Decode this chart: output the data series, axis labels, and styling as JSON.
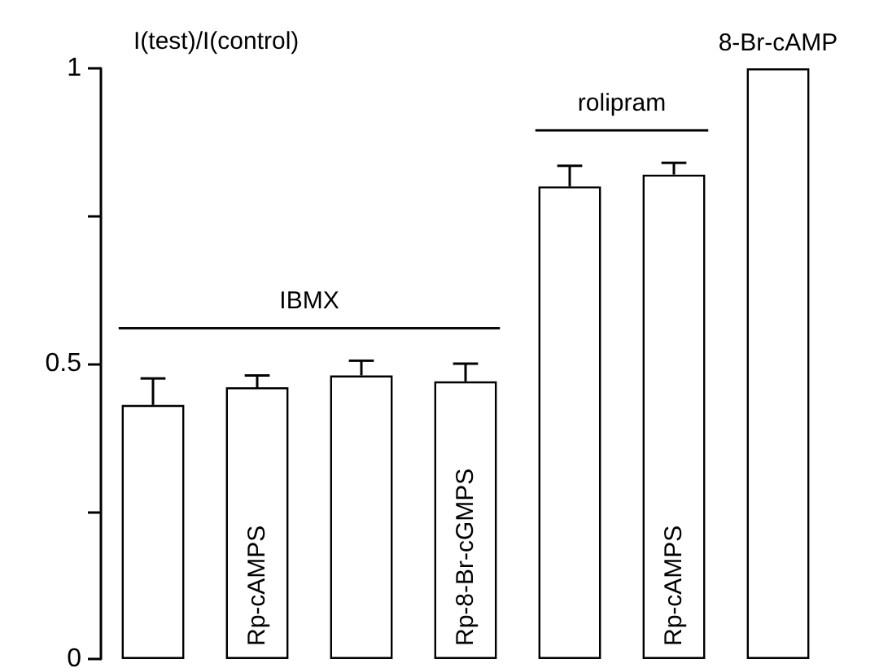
{
  "chart_data": {
    "type": "bar",
    "ylabel": "I(test)/I(control)",
    "categories": [
      null,
      "Rp-cAMPS",
      null,
      "Rp-8-Br-cGMPS",
      null,
      "Rp-cAMPS",
      "8-Br-cAMP"
    ],
    "values": [
      0.43,
      0.46,
      0.48,
      0.47,
      0.8,
      0.82,
      1.0
    ],
    "errors": [
      0.045,
      0.02,
      0.025,
      0.03,
      0.035,
      0.02,
      null
    ],
    "color": "#ffffff",
    "ylim": [
      0,
      1
    ],
    "yticks": [
      0,
      {
        "value": 0.25,
        "label": null
      },
      0.5,
      {
        "value": 0.75,
        "label": null
      },
      1
    ],
    "annotations": [
      "IBMX",
      "rolipram"
    ],
    "grid": false
  }
}
